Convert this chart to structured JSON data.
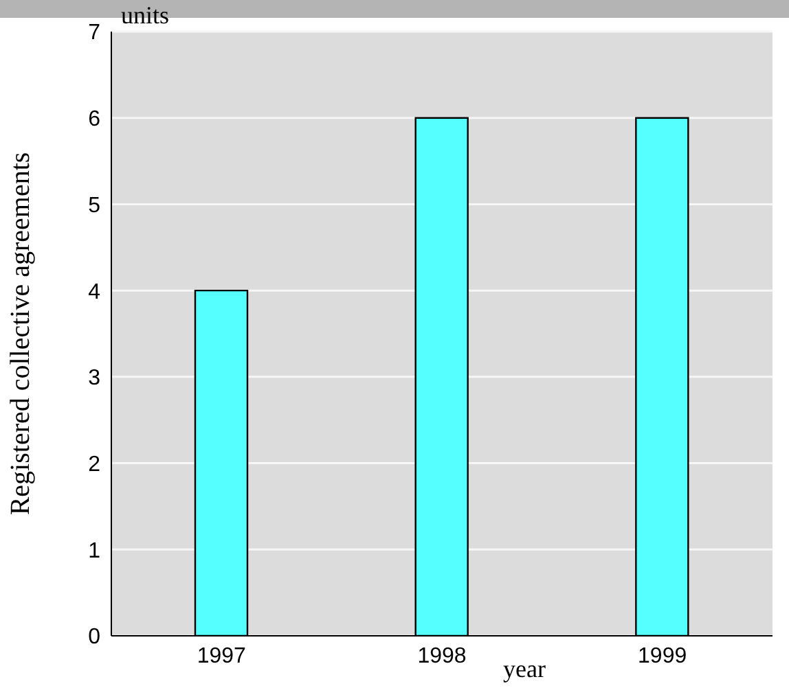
{
  "chart_data": {
    "type": "bar",
    "ylabel": "Registered collective agreements",
    "xlabel": "year",
    "annotations": [
      "units"
    ],
    "categories": [
      "1997",
      "1998",
      "1999"
    ],
    "values": [
      4,
      6,
      6
    ],
    "color": "#55ffff",
    "ylim": [
      0,
      7
    ],
    "yticks": [
      0,
      1,
      2,
      3,
      4,
      5,
      6,
      7
    ],
    "grid": "y",
    "legend": false
  }
}
